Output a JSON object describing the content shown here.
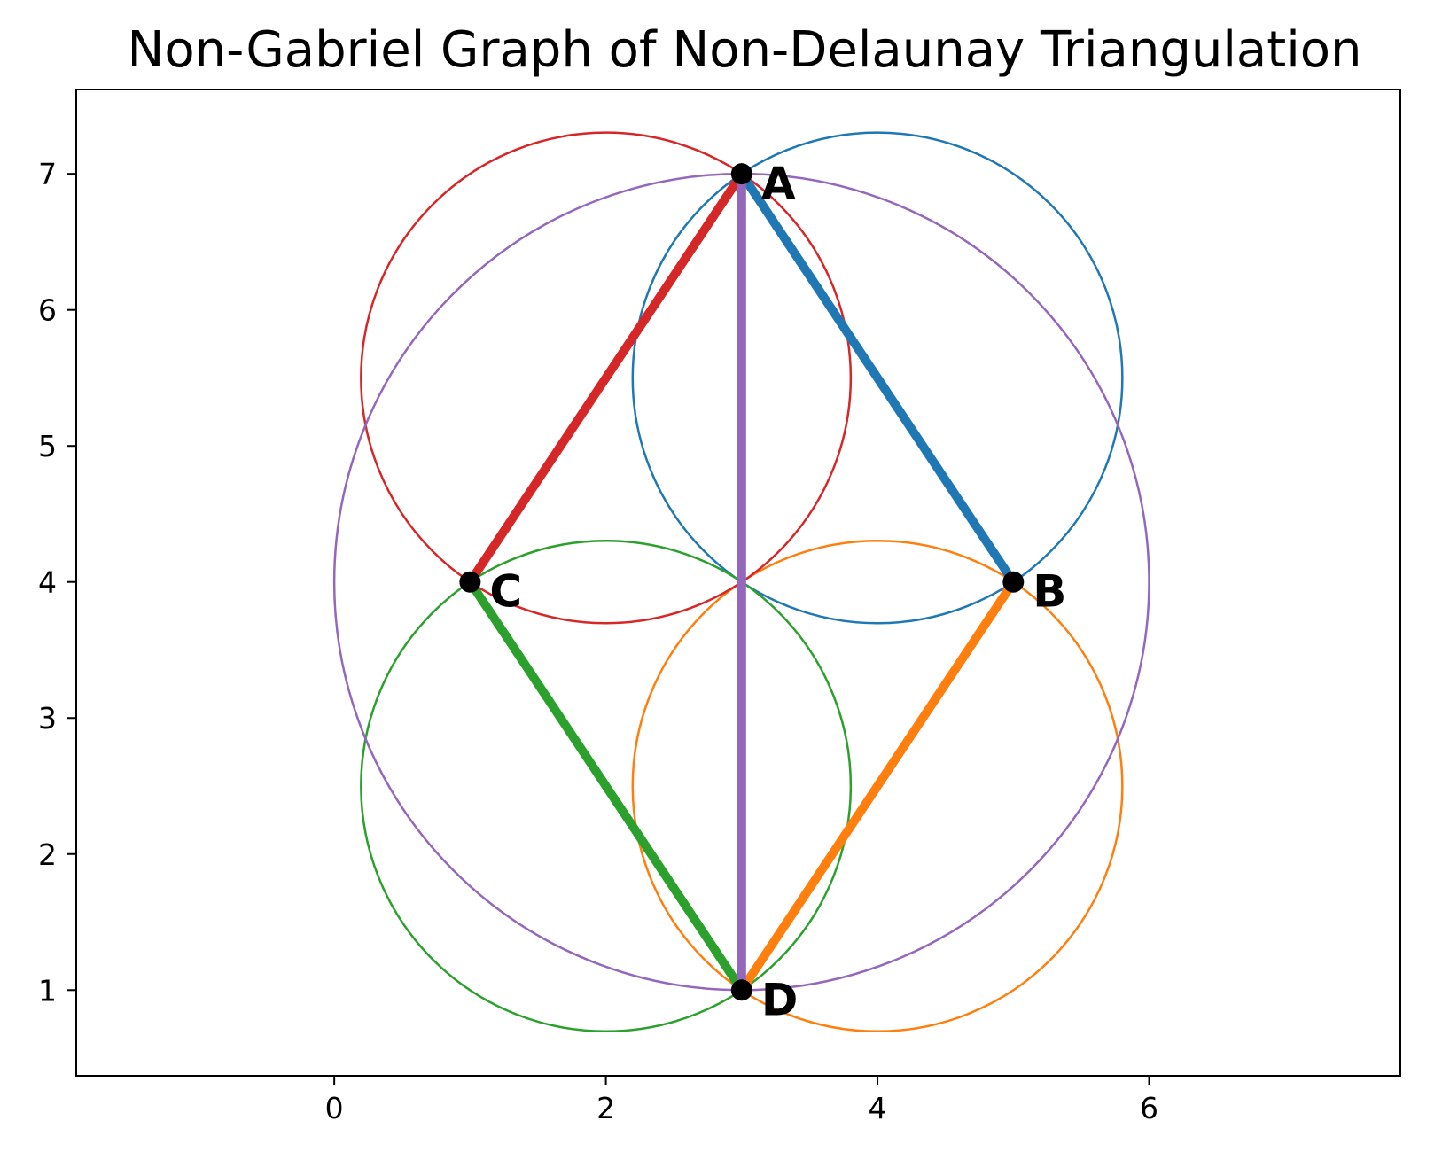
{
  "chart_data": {
    "type": "scatter",
    "title": "Non-Gabriel Graph of Non-Delaunay Triangulation",
    "xlabel": "",
    "ylabel": "",
    "xlim": [
      -1.9,
      7.85
    ],
    "ylim": [
      0.37,
      7.62
    ],
    "grid": false,
    "x_ticks": [
      0,
      2,
      4,
      6
    ],
    "y_ticks": [
      1,
      2,
      3,
      4,
      5,
      6,
      7
    ],
    "points": [
      {
        "label": "A",
        "x": 3,
        "y": 7
      },
      {
        "label": "B",
        "x": 5,
        "y": 4
      },
      {
        "label": "C",
        "x": 1,
        "y": 4
      },
      {
        "label": "D",
        "x": 3,
        "y": 1
      }
    ],
    "edges": [
      {
        "from": "A",
        "to": "B",
        "color": "#1f77b4"
      },
      {
        "from": "B",
        "to": "D",
        "color": "#ff7f0e"
      },
      {
        "from": "D",
        "to": "C",
        "color": "#2ca02c"
      },
      {
        "from": "C",
        "to": "A",
        "color": "#d62728"
      },
      {
        "from": "A",
        "to": "D",
        "color": "#9467bd"
      }
    ],
    "circles": [
      {
        "edge": "A-B",
        "cx": 4,
        "cy": 5.5,
        "r": 1.803,
        "color": "#1f77b4"
      },
      {
        "edge": "B-D",
        "cx": 4,
        "cy": 2.5,
        "r": 1.803,
        "color": "#ff7f0e"
      },
      {
        "edge": "D-C",
        "cx": 2,
        "cy": 2.5,
        "r": 1.803,
        "color": "#2ca02c"
      },
      {
        "edge": "C-A",
        "cx": 2,
        "cy": 5.5,
        "r": 1.803,
        "color": "#d62728"
      },
      {
        "edge": "A-D",
        "cx": 3,
        "cy": 4,
        "r": 3,
        "color": "#9467bd"
      }
    ],
    "point_color": "#000000"
  }
}
